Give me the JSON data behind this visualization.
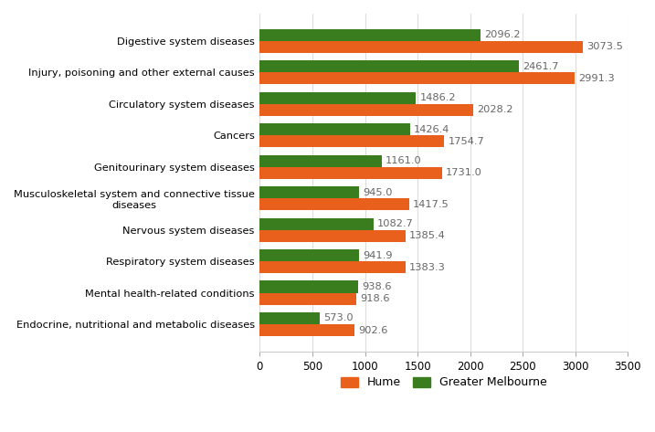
{
  "categories": [
    "Digestive system diseases",
    "Injury, poisoning and other external causes",
    "Circulatory system diseases",
    "Cancers",
    "Genitourinary system diseases",
    "Musculoskeletal system and connective tissue\ndiseases",
    "Nervous system diseases",
    "Respiratory system diseases",
    "Mental health-related conditions",
    "Endocrine, nutritional and metabolic diseases"
  ],
  "hume": [
    3073.5,
    2991.3,
    2028.2,
    1754.7,
    1731.0,
    1417.5,
    1385.4,
    1383.3,
    918.6,
    902.6
  ],
  "greater_melbourne": [
    2096.2,
    2461.7,
    1486.2,
    1426.4,
    1161.0,
    945.0,
    1082.7,
    941.9,
    938.6,
    573.0
  ],
  "hume_color": "#E8601C",
  "melbourne_color": "#3A7D1E",
  "xlim": [
    0,
    3500
  ],
  "xticks": [
    0,
    500,
    1000,
    1500,
    2000,
    2500,
    3000,
    3500
  ],
  "legend_labels": [
    "Hume",
    "Greater Melbourne"
  ],
  "background_color": "#ffffff",
  "bar_height": 0.38,
  "label_fontsize": 8.2,
  "value_fontsize": 8.2
}
